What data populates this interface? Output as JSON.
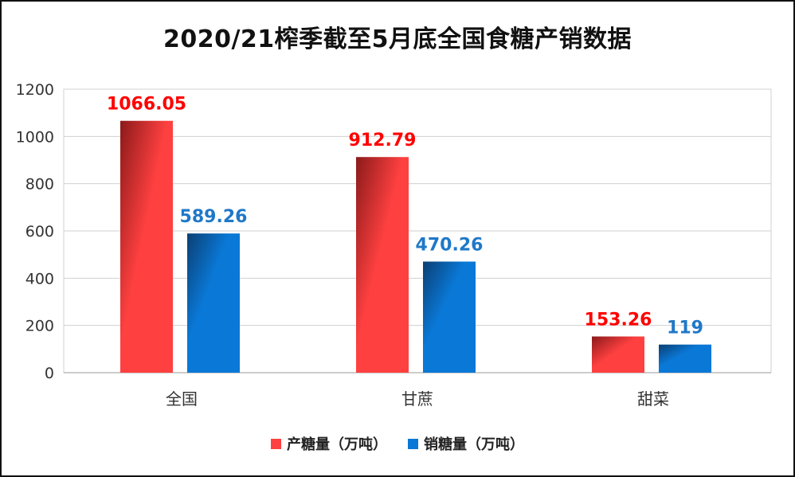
{
  "chart_data": {
    "type": "bar",
    "title": "2020/21榨季截至5月底全国食糖产销数据",
    "categories": [
      "全国",
      "甘蔗",
      "甜菜"
    ],
    "series": [
      {
        "name": "产糖量（万吨）",
        "values": [
          1066.05,
          912.79,
          153.26
        ],
        "labels": [
          "1066.05",
          "912.79",
          "153.26"
        ],
        "color": "#ff4040",
        "dark_color": "#8b1a1a",
        "label_color": "#ff0000"
      },
      {
        "name": "销糖量（万吨）",
        "values": [
          589.26,
          470.26,
          119
        ],
        "labels": [
          "589.26",
          "470.26",
          "119"
        ],
        "color": "#0a78d6",
        "dark_color": "#0b3f73",
        "label_color": "#1f78c8"
      }
    ],
    "yticks": [
      "0",
      "200",
      "400",
      "600",
      "800",
      "1000",
      "1200"
    ],
    "ylim": [
      0,
      1200
    ],
    "grid": true,
    "legend_position": "bottom",
    "xlabel": "",
    "ylabel": ""
  }
}
